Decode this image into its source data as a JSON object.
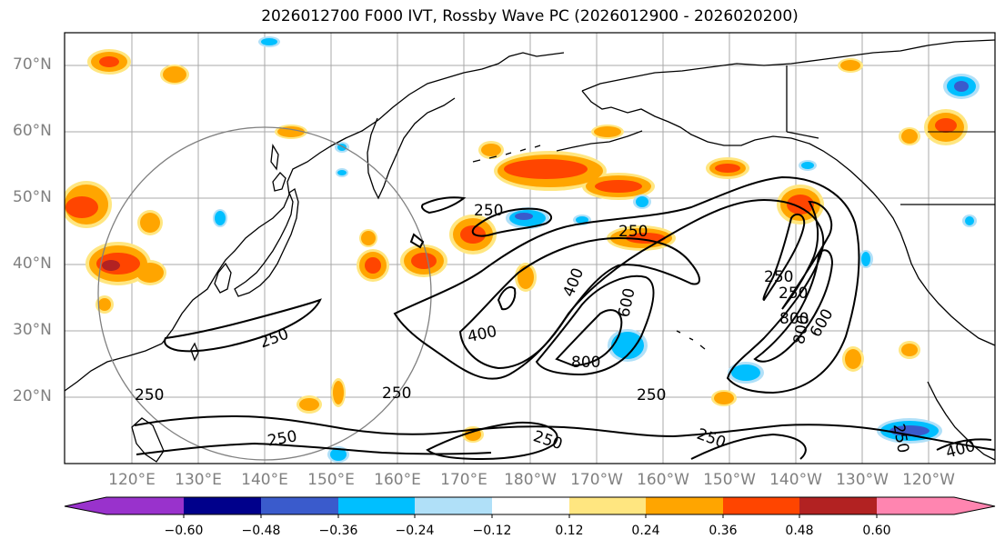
{
  "title": "2026012700 F000 IVT, Rossby Wave PC (2026012900 - 2026020200)",
  "lat_labels": [
    "70°N",
    "60°N",
    "50°N",
    "40°N",
    "30°N",
    "20°N"
  ],
  "lon_labels": [
    "120°E",
    "130°E",
    "140°E",
    "150°E",
    "160°E",
    "170°E",
    "180°W",
    "170°W",
    "160°W",
    "150°W",
    "140°W",
    "130°W",
    "120°W"
  ],
  "colorbar": {
    "ticks": [
      "−0.60",
      "−0.48",
      "−0.36",
      "−0.24",
      "−0.12",
      "0.12",
      "0.24",
      "0.36",
      "0.48",
      "0.60"
    ],
    "colors": [
      "#9932cc",
      "#00008b",
      "#3a5bcc",
      "#00bfff",
      "#b0e0f8",
      "#ffffff",
      "#ffe680",
      "#ffa500",
      "#ff4500",
      "#b22222",
      "#ff85b0"
    ]
  },
  "contour_labels": [
    "250",
    "400",
    "600",
    "800",
    "250",
    "250",
    "400",
    "800",
    "250",
    "250",
    "600",
    "800",
    "250",
    "250",
    "250",
    "250",
    "250",
    "250",
    "400",
    "250"
  ],
  "colors": {
    "lake": "#b8e0ff",
    "gridline": "#a9a9a9",
    "circle": "#808080"
  }
}
